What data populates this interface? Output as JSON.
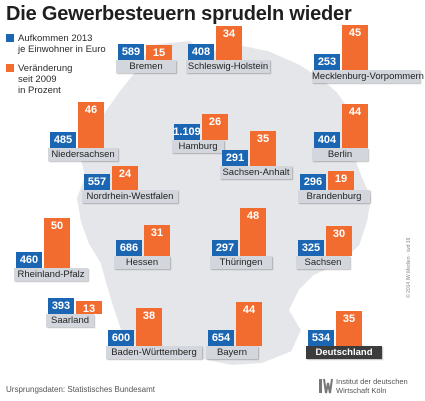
{
  "title": "Die Gewerbesteuern sprudeln wieder",
  "legend": {
    "items": [
      {
        "label_lines": [
          "Aufkommen 2013",
          "je Einwohner in Euro"
        ],
        "color": "#1a66b3"
      },
      {
        "label_lines": [
          "Veränderung",
          "seit 2009",
          "in Prozent"
        ],
        "color": "#f26c2f"
      }
    ]
  },
  "colors": {
    "blue": "#1a66b3",
    "orange": "#f26c2f",
    "label_bg": "#d3d7dd",
    "highlight_bg": "#3c3c3c",
    "map_fill": "#e4e6e9",
    "map_stroke": "#ffffff"
  },
  "chart_data": {
    "type": "bar",
    "title": "Die Gewerbesteuern sprudeln wieder",
    "series": [
      {
        "name": "Aufkommen 2013 je Einwohner in Euro"
      },
      {
        "name": "Veränderung seit 2009 in Prozent"
      }
    ],
    "states": [
      {
        "name": "Bremen",
        "aufkommen": 589,
        "aufkommen_label": "589",
        "veraenderung": 15
      },
      {
        "name": "Schleswig-Holstein",
        "aufkommen": 408,
        "aufkommen_label": "408",
        "veraenderung": 34
      },
      {
        "name": "Mecklenburg-Vorpommern",
        "aufkommen": 253,
        "aufkommen_label": "253",
        "veraenderung": 45
      },
      {
        "name": "Niedersachsen",
        "aufkommen": 485,
        "aufkommen_label": "485",
        "veraenderung": 46
      },
      {
        "name": "Hamburg",
        "aufkommen": 1109,
        "aufkommen_label": "1.109",
        "veraenderung": 26
      },
      {
        "name": "Berlin",
        "aufkommen": 404,
        "aufkommen_label": "404",
        "veraenderung": 44
      },
      {
        "name": "Sachsen-Anhalt",
        "aufkommen": 291,
        "aufkommen_label": "291",
        "veraenderung": 35
      },
      {
        "name": "Brandenburg",
        "aufkommen": 296,
        "aufkommen_label": "296",
        "veraenderung": 19
      },
      {
        "name": "Nordrhein-Westfalen",
        "aufkommen": 557,
        "aufkommen_label": "557",
        "veraenderung": 24
      },
      {
        "name": "Rheinland-Pfalz",
        "aufkommen": 460,
        "aufkommen_label": "460",
        "veraenderung": 50
      },
      {
        "name": "Hessen",
        "aufkommen": 686,
        "aufkommen_label": "686",
        "veraenderung": 31
      },
      {
        "name": "Thüringen",
        "aufkommen": 297,
        "aufkommen_label": "297",
        "veraenderung": 48
      },
      {
        "name": "Sachsen",
        "aufkommen": 325,
        "aufkommen_label": "325",
        "veraenderung": 30
      },
      {
        "name": "Saarland",
        "aufkommen": 393,
        "aufkommen_label": "393",
        "veraenderung": 13
      },
      {
        "name": "Baden-Württemberg",
        "aufkommen": 600,
        "aufkommen_label": "600",
        "veraenderung": 38
      },
      {
        "name": "Bayern",
        "aufkommen": 654,
        "aufkommen_label": "654",
        "veraenderung": 44
      },
      {
        "name": "Deutschland",
        "aufkommen": 534,
        "aufkommen_label": "534",
        "veraenderung": 35,
        "highlight": true
      }
    ]
  },
  "footer": {
    "source": "Ursprungsdaten: Statistisches Bundesamt",
    "copyright": "© 2014 IW Medien · iwd 19",
    "logo_line1": "Institut der deutschen",
    "logo_line2": "Wirtschaft Köln"
  }
}
